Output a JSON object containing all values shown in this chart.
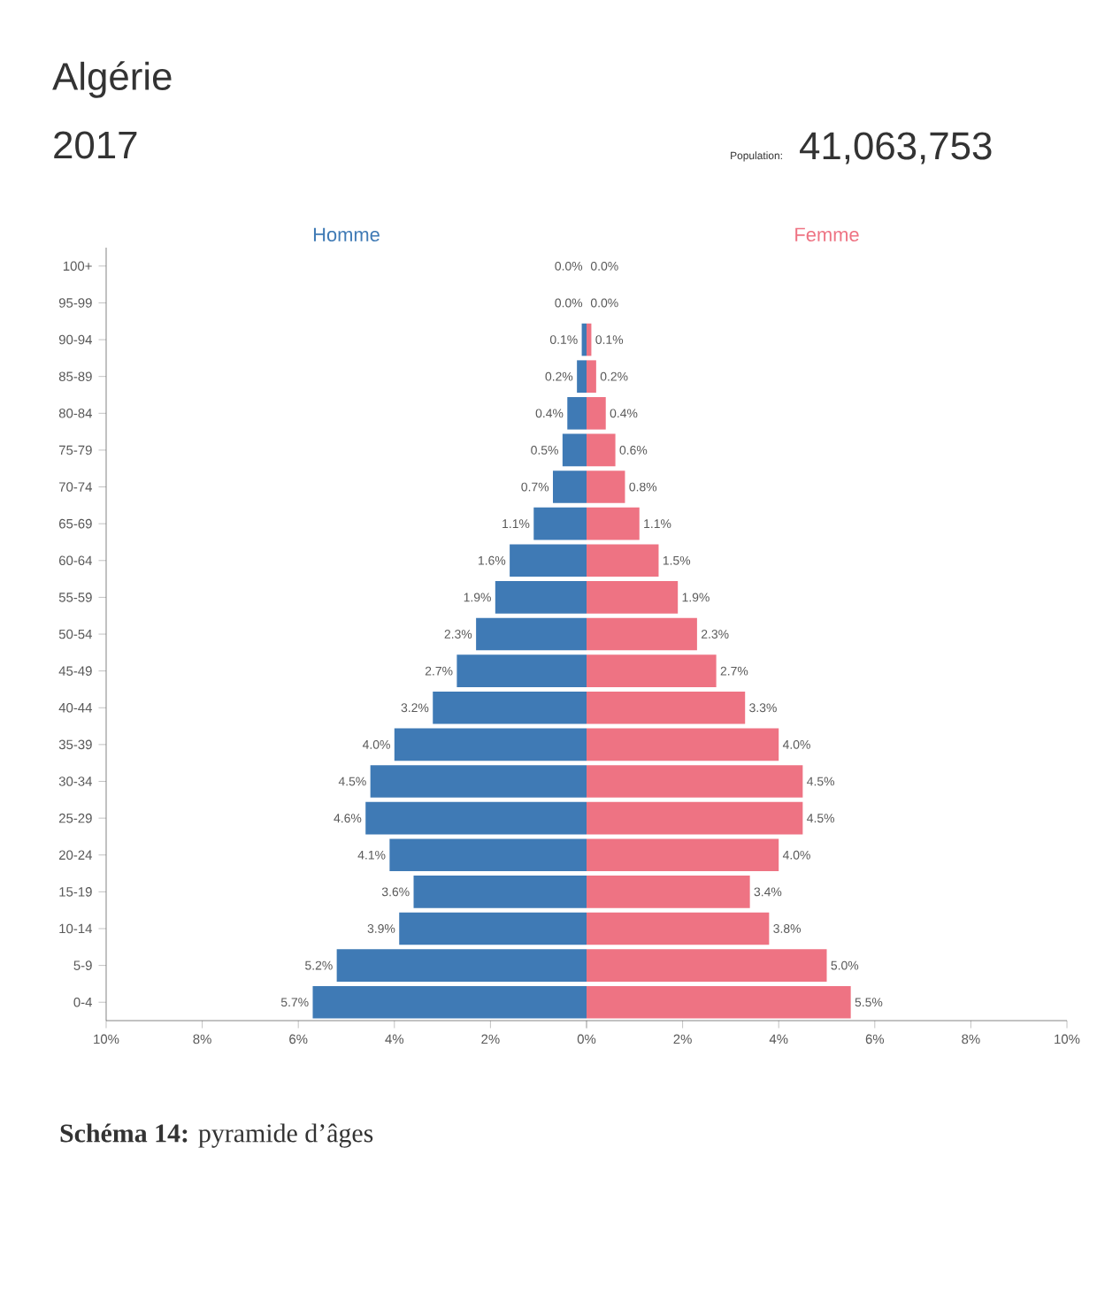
{
  "chart_data": [
    {
      "type": "bar",
      "orientation": "horizontal",
      "title": "Algérie",
      "subtitle": "2017",
      "annotations": [
        "Population:",
        "41,063,753",
        "**Schéma 14:** pyramide d’âges"
      ],
      "categories": [
        "100+",
        "95-99",
        "90-94",
        "85-89",
        "80-84",
        "75-79",
        "70-74",
        "65-69",
        "60-64",
        "55-59",
        "50-54",
        "45-49",
        "40-44",
        "35-39",
        "30-34",
        "25-29",
        "20-24",
        "15-19",
        "10-14",
        "5-9",
        "0-4"
      ],
      "series": [
        {
          "name": "Homme",
          "color": "#3f7ab5",
          "values": [
            0.0,
            0.0,
            0.1,
            0.2,
            0.4,
            0.5,
            0.7,
            1.1,
            1.6,
            1.9,
            2.3,
            2.7,
            3.2,
            4.0,
            4.5,
            4.6,
            4.1,
            3.6,
            3.9,
            5.2,
            5.7
          ],
          "value_labels": [
            "0.0%",
            "0.0%",
            "0.1%",
            "0.2%",
            "0.4%",
            "0.5%",
            "0.7%",
            "1.1%",
            "1.6%",
            "1.9%",
            "2.3%",
            "2.7%",
            "3.2%",
            "4.0%",
            "4.5%",
            "4.6%",
            "4.1%",
            "3.6%",
            "3.9%",
            "5.2%",
            "5.7%"
          ]
        }
      ],
      "xlim": [
        10,
        0
      ],
      "xticks": [
        {
          "value": 10,
          "label": "10%"
        },
        {
          "value": 8,
          "label": "8%"
        },
        {
          "value": 6,
          "label": "6%"
        },
        {
          "value": 4,
          "label": "4%"
        },
        {
          "value": 2,
          "label": "2%"
        },
        {
          "value": 0,
          "label": null
        }
      ]
    },
    {
      "type": "bar",
      "orientation": "horizontal",
      "tick_labels": "x",
      "categories": [
        null,
        null,
        null,
        null,
        null,
        null,
        null,
        null,
        null,
        null,
        null,
        null,
        null,
        null,
        null,
        null,
        null,
        null,
        null,
        null,
        null
      ],
      "series": [
        {
          "name": "Femme",
          "color": "#ee7383",
          "values": [
            0.0,
            0.0,
            0.1,
            0.2,
            0.4,
            0.6,
            0.8,
            1.1,
            1.5,
            1.9,
            2.3,
            2.7,
            3.3,
            4.0,
            4.5,
            4.5,
            4.0,
            3.4,
            3.8,
            5.0,
            5.5
          ],
          "value_labels": [
            "0.0%",
            "0.0%",
            "0.1%",
            "0.2%",
            "0.4%",
            "0.6%",
            "0.8%",
            "1.1%",
            "1.5%",
            "1.9%",
            "2.3%",
            "2.7%",
            "3.3%",
            "4.0%",
            "4.5%",
            "4.5%",
            "4.0%",
            "3.4%",
            "3.8%",
            "5.0%",
            "5.5%"
          ]
        }
      ],
      "xlim": [
        0,
        10
      ],
      "xticks": [
        {
          "value": 0,
          "label": "0%"
        },
        {
          "value": 2,
          "label": "2%"
        },
        {
          "value": 4,
          "label": "4%"
        },
        {
          "value": 6,
          "label": "6%"
        },
        {
          "value": 8,
          "label": "8%"
        },
        {
          "value": 10,
          "label": "10%"
        }
      ]
    }
  ]
}
